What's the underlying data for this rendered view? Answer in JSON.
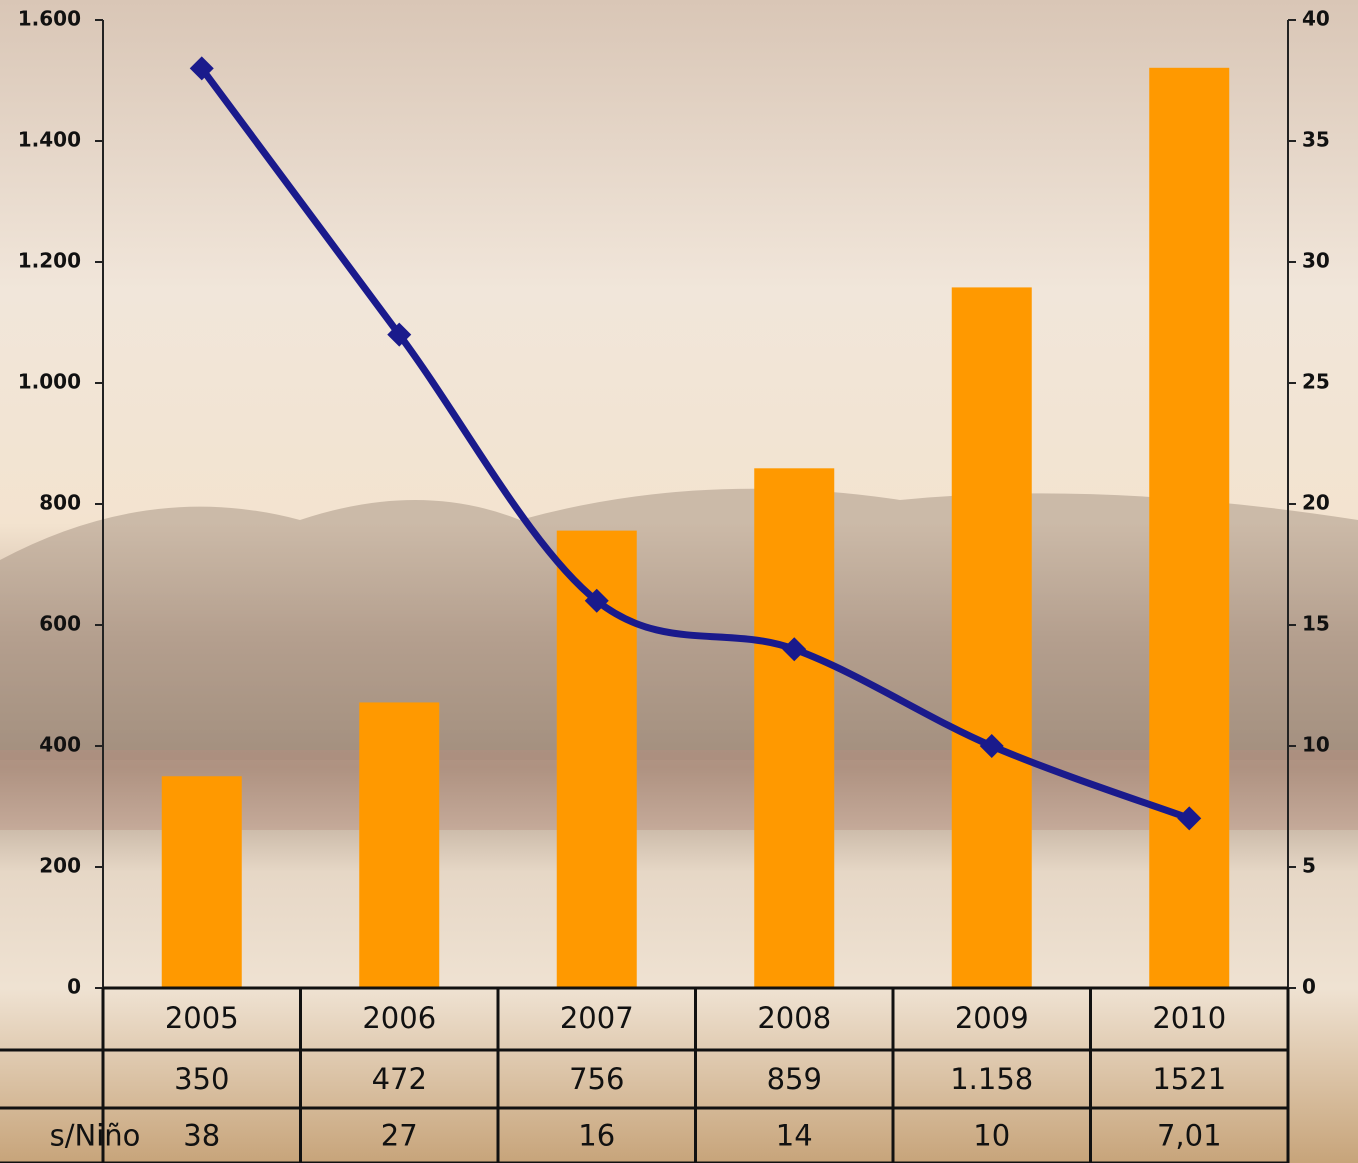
{
  "chart_data": {
    "type": "bar_line",
    "categories": [
      "2005",
      "2006",
      "2007",
      "2008",
      "2009",
      "2010"
    ],
    "series": [
      {
        "color": "#ff9900",
        "values": [
          350,
          472,
          756,
          859,
          1158,
          1521
        ],
        "value_labels": [
          "350",
          "472",
          "756",
          "859",
          "1.158",
          "1521"
        ]
      },
      {
        "name": "s/Niño",
        "color": "#1a1a8c",
        "axis": "y2",
        "values": [
          38,
          27,
          16,
          14,
          10,
          7.01
        ],
        "value_labels": [
          "38",
          "27",
          "16",
          "14",
          "10",
          "7,01"
        ]
      }
    ],
    "ylim": [
      0,
      1600
    ],
    "yticks": [
      0,
      200,
      400,
      600,
      800,
      {
        "value": 1000,
        "label": "1.000"
      },
      {
        "value": 1200,
        "label": "1.200"
      },
      {
        "value": 1400,
        "label": "1.400"
      },
      {
        "value": 1600,
        "label": "1.600"
      }
    ],
    "y2lim": [
      0,
      40
    ],
    "y2ticks": [
      0,
      5,
      10,
      15,
      20,
      25,
      30,
      35,
      40
    ]
  }
}
